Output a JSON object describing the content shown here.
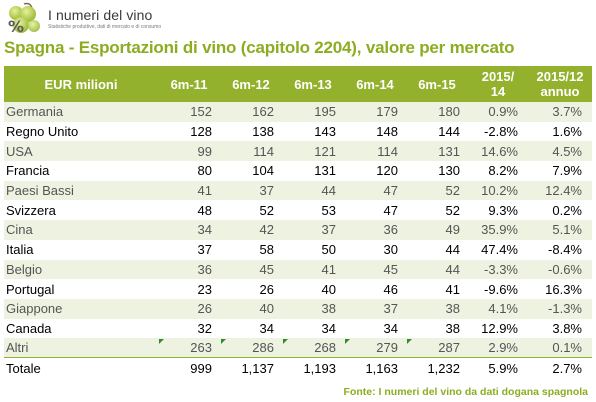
{
  "header": {
    "logo_title": "I numeri del vino",
    "logo_tagline": "Statistiche produttive, dati di mercato e di consumo",
    "page_title": "Spagna - Esportazioni di vino (capitolo 2204), valore per mercato"
  },
  "table": {
    "columns": [
      "EUR milioni",
      "6m-11",
      "6m-12",
      "6m-13",
      "6m-14",
      "6m-15",
      "2015/ 14",
      "2015/12 annuo"
    ],
    "rows": [
      {
        "market": "Germania",
        "v11": "152",
        "v12": "162",
        "v13": "195",
        "v14": "179",
        "v15": "180",
        "y1514": "0.9%",
        "annuo": "3.7%"
      },
      {
        "market": "Regno Unito",
        "v11": "128",
        "v12": "138",
        "v13": "143",
        "v14": "148",
        "v15": "144",
        "y1514": "-2.8%",
        "annuo": "1.6%"
      },
      {
        "market": "USA",
        "v11": "99",
        "v12": "114",
        "v13": "121",
        "v14": "114",
        "v15": "131",
        "y1514": "14.6%",
        "annuo": "4.5%"
      },
      {
        "market": "Francia",
        "v11": "80",
        "v12": "104",
        "v13": "131",
        "v14": "120",
        "v15": "130",
        "y1514": "8.2%",
        "annuo": "7.9%"
      },
      {
        "market": "Paesi Bassi",
        "v11": "41",
        "v12": "37",
        "v13": "44",
        "v14": "47",
        "v15": "52",
        "y1514": "10.2%",
        "annuo": "12.4%"
      },
      {
        "market": "Svizzera",
        "v11": "48",
        "v12": "52",
        "v13": "53",
        "v14": "47",
        "v15": "52",
        "y1514": "9.3%",
        "annuo": "0.2%"
      },
      {
        "market": "Cina",
        "v11": "34",
        "v12": "42",
        "v13": "37",
        "v14": "36",
        "v15": "49",
        "y1514": "35.9%",
        "annuo": "5.1%"
      },
      {
        "market": "Italia",
        "v11": "37",
        "v12": "58",
        "v13": "50",
        "v14": "30",
        "v15": "44",
        "y1514": "47.4%",
        "annuo": "-8.4%"
      },
      {
        "market": "Belgio",
        "v11": "36",
        "v12": "45",
        "v13": "41",
        "v14": "45",
        "v15": "44",
        "y1514": "-3.3%",
        "annuo": "-0.6%"
      },
      {
        "market": "Portugal",
        "v11": "23",
        "v12": "26",
        "v13": "40",
        "v14": "46",
        "v15": "41",
        "y1514": "-9.6%",
        "annuo": "16.3%"
      },
      {
        "market": "Giappone",
        "v11": "26",
        "v12": "40",
        "v13": "38",
        "v14": "37",
        "v15": "38",
        "y1514": "4.1%",
        "annuo": "-1.3%"
      },
      {
        "market": "Canada",
        "v11": "32",
        "v12": "34",
        "v13": "34",
        "v14": "34",
        "v15": "38",
        "y1514": "12.9%",
        "annuo": "3.8%"
      },
      {
        "market": "Altri",
        "v11": "263",
        "v12": "286",
        "v13": "268",
        "v14": "279",
        "v15": "287",
        "y1514": "2.9%",
        "annuo": "0.1%"
      },
      {
        "market": "Totale",
        "v11": "999",
        "v12": "1,137",
        "v13": "1,193",
        "v14": "1,163",
        "v15": "1,232",
        "y1514": "5.9%",
        "annuo": "2.7%"
      }
    ]
  },
  "footer": {
    "source": "Fonte: I numeri del vino da dati dogana spagnola"
  },
  "colors": {
    "accent": "#93b12c",
    "title": "#8dac22",
    "stripe": "#eef2e1"
  }
}
